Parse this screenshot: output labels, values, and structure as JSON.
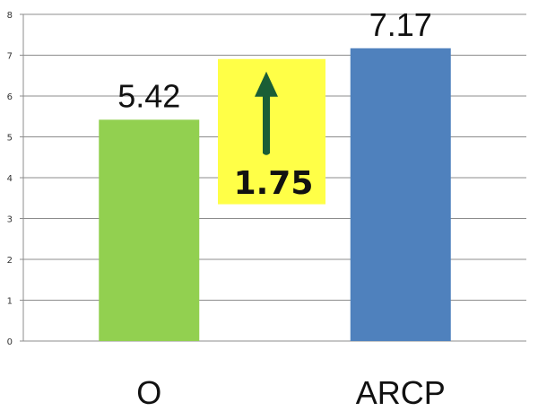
{
  "chart_data": {
    "type": "bar",
    "categories": [
      "O",
      "ARCP"
    ],
    "values": [
      5.42,
      7.17
    ],
    "value_labels": [
      "5.42",
      "7.17"
    ],
    "colors": [
      "#92d050",
      "#4f81bd"
    ],
    "title": "",
    "xlabel": "",
    "ylabel": "",
    "ylim": [
      0,
      8
    ],
    "yticks": [
      0,
      1,
      2,
      3,
      4,
      5,
      6,
      7,
      8
    ],
    "grid": true,
    "legend": "none",
    "annotation": {
      "text": "1.75",
      "highlight_color": "#ffff47",
      "arrow_color": "#1a5e36",
      "arrow_direction": "up"
    }
  }
}
